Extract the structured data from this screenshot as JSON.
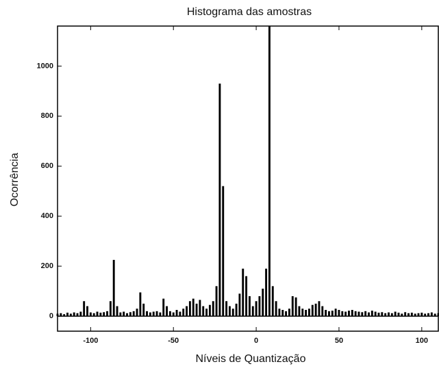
{
  "chart_data": {
    "type": "histogram",
    "title": "Histograma das amostras",
    "xlabel": "Níveis de Quantização",
    "ylabel": "Ocorrência",
    "x": [
      -120,
      -118,
      -116,
      -114,
      -112,
      -110,
      -108,
      -106,
      -104,
      -102,
      -100,
      -98,
      -96,
      -94,
      -92,
      -90,
      -88,
      -86,
      -84,
      -82,
      -80,
      -78,
      -76,
      -74,
      -72,
      -70,
      -68,
      -66,
      -64,
      -62,
      -60,
      -58,
      -56,
      -54,
      -52,
      -50,
      -48,
      -46,
      -44,
      -42,
      -40,
      -38,
      -36,
      -34,
      -32,
      -30,
      -28,
      -26,
      -24,
      -22,
      -20,
      -18,
      -16,
      -14,
      -12,
      -10,
      -8,
      -6,
      -4,
      -2,
      0,
      2,
      4,
      6,
      8,
      10,
      12,
      14,
      16,
      18,
      20,
      22,
      24,
      26,
      28,
      30,
      32,
      34,
      36,
      38,
      40,
      42,
      44,
      46,
      48,
      50,
      52,
      54,
      56,
      58,
      60,
      62,
      64,
      66,
      68,
      70,
      72,
      74,
      76,
      78,
      80,
      82,
      84,
      86,
      88,
      90,
      92,
      94,
      96,
      98,
      100,
      102,
      104,
      106,
      108,
      110
    ],
    "values": [
      10,
      12,
      8,
      14,
      10,
      15,
      12,
      18,
      60,
      40,
      15,
      12,
      18,
      14,
      16,
      20,
      60,
      225,
      40,
      15,
      18,
      12,
      16,
      20,
      30,
      95,
      50,
      20,
      15,
      18,
      20,
      15,
      70,
      40,
      20,
      15,
      25,
      18,
      30,
      40,
      60,
      70,
      50,
      65,
      40,
      30,
      45,
      60,
      120,
      930,
      520,
      60,
      40,
      30,
      50,
      90,
      190,
      160,
      80,
      40,
      60,
      80,
      110,
      190,
      1160,
      120,
      60,
      30,
      25,
      20,
      30,
      80,
      75,
      40,
      30,
      25,
      30,
      45,
      50,
      60,
      40,
      25,
      20,
      22,
      30,
      25,
      20,
      18,
      22,
      25,
      20,
      18,
      16,
      20,
      15,
      22,
      18,
      14,
      16,
      12,
      15,
      12,
      18,
      14,
      10,
      16,
      12,
      14,
      10,
      12,
      14,
      10,
      12,
      15,
      10,
      12
    ],
    "color": "#000000",
    "xlim": [
      -120,
      110
    ],
    "xticks": [
      -100,
      -50,
      0,
      50,
      100
    ],
    "ylim": [
      -60,
      1160
    ],
    "yticks": [
      0,
      200,
      400,
      600,
      800,
      1000
    ]
  }
}
